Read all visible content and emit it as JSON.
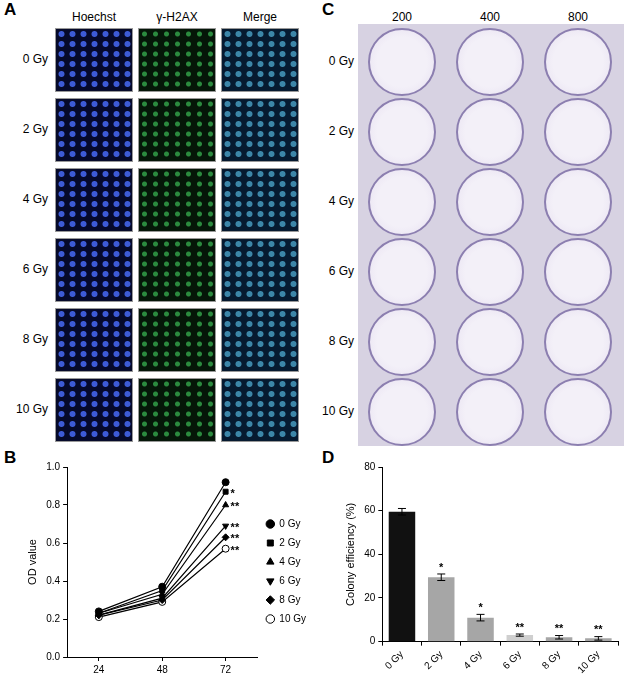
{
  "panel_a": {
    "label": "A",
    "columns": [
      "Hoechst",
      "γ-H2AX",
      "Merge"
    ],
    "rows": [
      "0 Gy",
      "2 Gy",
      "4 Gy",
      "6 Gy",
      "8 Gy",
      "10 Gy"
    ]
  },
  "panel_c": {
    "label": "C",
    "columns": [
      200,
      400,
      800
    ],
    "rows": [
      "0 Gy",
      "2 Gy",
      "4 Gy",
      "6 Gy",
      "8 Gy",
      "10 Gy"
    ]
  },
  "chart_data": [
    {
      "type": "line",
      "title": "B",
      "y_label": "OD value",
      "categories": [
        "24",
        "48",
        "72"
      ],
      "series": [
        {
          "name": "0 Gy",
          "color": "#000000",
          "marker": "circle",
          "values": [
            0.24,
            0.37,
            0.92
          ]
        },
        {
          "name": "2 Gy",
          "color": "#000000",
          "marker": "square",
          "values": [
            0.23,
            0.35,
            0.87
          ]
        },
        {
          "name": "4 Gy",
          "color": "#000000",
          "marker": "triangle",
          "values": [
            0.23,
            0.33,
            0.8
          ]
        },
        {
          "name": "6 Gy",
          "color": "#000000",
          "marker": "triangle-down",
          "values": [
            0.22,
            0.31,
            0.69
          ]
        },
        {
          "name": "8 Gy",
          "color": "#000000",
          "marker": "diamond",
          "values": [
            0.22,
            0.3,
            0.63
          ]
        },
        {
          "name": "10 Gy",
          "color": "#000000",
          "marker": "circle-open",
          "values": [
            0.21,
            0.29,
            0.57
          ]
        }
      ],
      "annotations": [
        {
          "series": "2 Gy",
          "x": "72",
          "text": "*"
        },
        {
          "series": "4 Gy",
          "x": "72",
          "text": "**"
        },
        {
          "series": "6 Gy",
          "x": "72",
          "text": "**"
        },
        {
          "series": "8 Gy",
          "x": "72",
          "text": "**"
        },
        {
          "series": "10 Gy",
          "x": "72",
          "text": "**"
        }
      ],
      "ylim": [
        0,
        1.0
      ],
      "yticks": [
        {
          "value": 0,
          "label": "0.0"
        },
        {
          "value": 0.2,
          "label": "0.2"
        },
        {
          "value": 0.4,
          "label": "0.4"
        },
        {
          "value": 0.6,
          "label": "0.6"
        },
        {
          "value": 0.8,
          "label": "0.8"
        },
        {
          "value": 1.0,
          "label": "1.0"
        }
      ],
      "grid": false,
      "legend": "right"
    },
    {
      "type": "bar",
      "title": "D",
      "y_label": "Colony efficiency (%)",
      "categories": [
        "0 Gy",
        "2 Gy",
        "4 Gy",
        "6 Gy",
        "8 Gy",
        "10 Gy"
      ],
      "values": [
        59.5,
        29.5,
        11,
        3,
        2,
        1.5
      ],
      "errors": [
        1.5,
        1.5,
        1.5,
        0.5,
        0.8,
        0.8
      ],
      "colors": [
        "#111111",
        "#a6a6a6",
        "#a6a6a6",
        "#cfcfcf",
        "#a6a6a6",
        "#a6a6a6"
      ],
      "annotations": [
        {
          "x": "2 Gy",
          "text": "*"
        },
        {
          "x": "4 Gy",
          "text": "*"
        },
        {
          "x": "6 Gy",
          "text": "**"
        },
        {
          "x": "8 Gy",
          "text": "**"
        },
        {
          "x": "10 Gy",
          "text": "**"
        }
      ],
      "ylim": [
        0,
        80
      ],
      "yticks": [
        0,
        20,
        40,
        60,
        80
      ],
      "grid": false
    }
  ]
}
